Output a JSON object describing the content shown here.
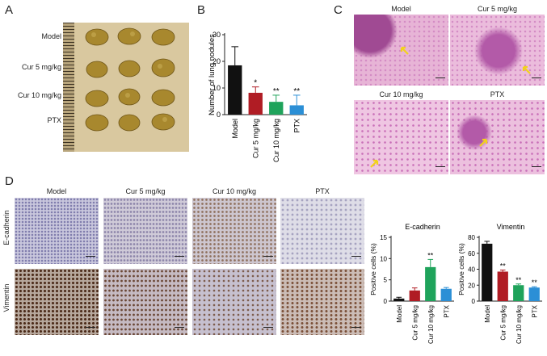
{
  "panels": {
    "A": {
      "label": "A",
      "rows": [
        "Model",
        "Cur 5 mg/kg",
        "Cur 10 mg/kg",
        "PTX"
      ]
    },
    "B": {
      "label": "B"
    },
    "C": {
      "label": "C",
      "titles": [
        "Model",
        "Cur 5 mg/kg",
        "Cur 10 mg/kg",
        "PTX"
      ]
    },
    "D": {
      "label": "D",
      "col_titles": [
        "Model",
        "Cur 5 mg/kg",
        "Cur 10 mg/kg",
        "PTX"
      ],
      "row_labels": [
        "E-cadherin",
        "Vimentin"
      ]
    }
  },
  "colors": {
    "model": "#111111",
    "cur5": "#b01c24",
    "cur10": "#1fa35b",
    "ptx": "#2b8fd6"
  },
  "chart_data": [
    {
      "type": "bar",
      "ylabel": "Number of lung nodules",
      "categories": [
        "Model",
        "Cur 5 mg/kg",
        "Cur 10 mg/kg",
        "PTX"
      ],
      "values": [
        18.5,
        8.2,
        4.8,
        3.5
      ],
      "errors": [
        7.0,
        2.2,
        2.5,
        3.8
      ],
      "significance": [
        "",
        "*",
        "**",
        "**"
      ],
      "ylim": [
        0,
        30
      ],
      "yticks": [
        0,
        10,
        20,
        30
      ]
    },
    {
      "type": "bar",
      "title": "E-cadherin",
      "ylabel": "Positive cells (%)",
      "categories": [
        "Model",
        "Cur 5 mg/kg",
        "Cur 10 mg/kg",
        "PTX"
      ],
      "values": [
        0.6,
        2.5,
        8.0,
        2.9
      ],
      "errors": [
        0.3,
        0.6,
        1.8,
        0.3
      ],
      "significance": [
        "",
        "",
        "**",
        ""
      ],
      "ylim": [
        0,
        15
      ],
      "yticks": [
        0,
        5,
        10,
        15
      ]
    },
    {
      "type": "bar",
      "title": "Vimentin",
      "ylabel": "Positive cells (%)",
      "categories": [
        "Model",
        "Cur 5 mg/kg",
        "Cur 10 mg/kg",
        "PTX"
      ],
      "values": [
        72,
        37,
        20,
        17
      ],
      "errors": [
        3,
        2,
        1.5,
        1
      ],
      "significance": [
        "",
        "**",
        "**",
        "**"
      ],
      "ylim": [
        0,
        80
      ],
      "yticks": [
        0,
        20,
        40,
        60,
        80
      ]
    }
  ]
}
